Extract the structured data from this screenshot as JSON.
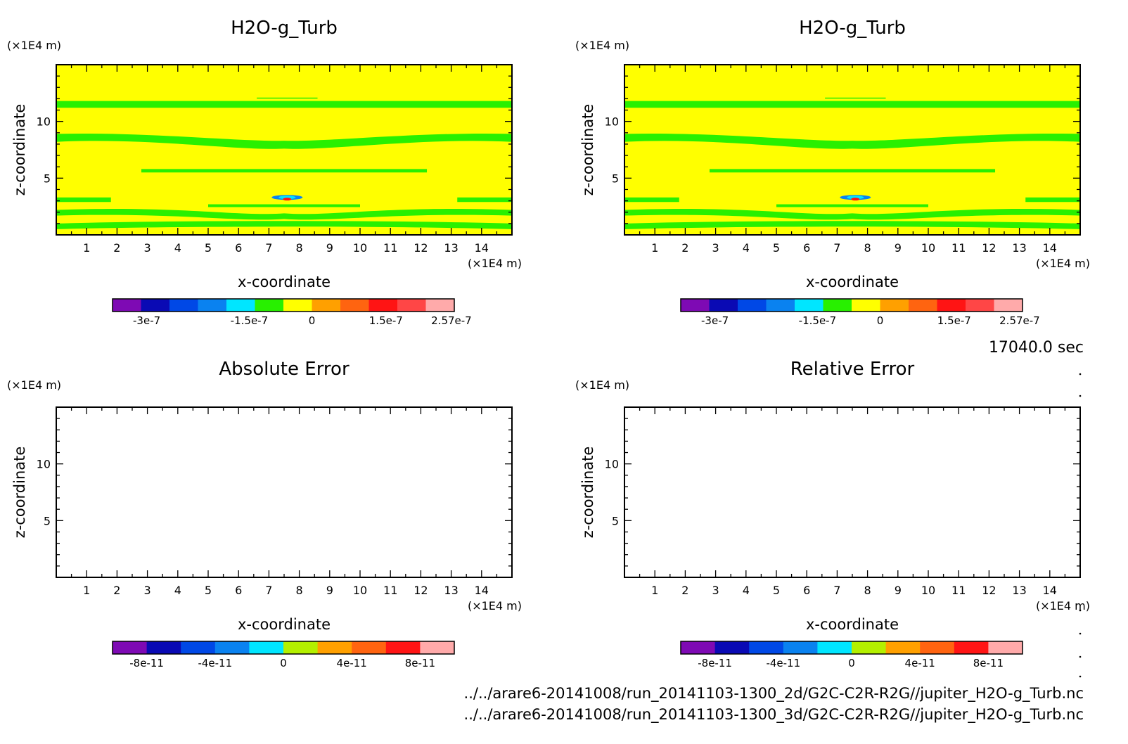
{
  "chart_data": [
    {
      "type": "heatmap",
      "title": "H2O-g_Turb",
      "xlabel": "x-coordinate",
      "ylabel": "z-coordinate",
      "x_unit": "(×1E4 m)",
      "y_unit": "(×1E4 m)",
      "xlim": [
        0,
        15
      ],
      "ylim": [
        0,
        15
      ],
      "x_ticks": [
        "1",
        "2",
        "3",
        "4",
        "5",
        "6",
        "7",
        "8",
        "9",
        "10",
        "11",
        "12",
        "13",
        "14"
      ],
      "y_ticks": [
        "5",
        "10"
      ],
      "field": "mostly 0 level (yellow) with bands of slightly negative values (green) near z=1-3, 5.8, 8-9 and 11.5; a small -3e-7 / +2.57e-7 feature near x=7.6, z=3.3",
      "colorbar": {
        "colors": [
          "#7e0ab4",
          "#0a0ab4",
          "#0048e6",
          "#0a82f0",
          "#00e6ff",
          "#28f000",
          "#ffff00",
          "#ffa000",
          "#ff6410",
          "#ff1414",
          "#ff4646",
          "#ffaaaa"
        ],
        "labels": [
          "-3e-7",
          "-1.5e-7",
          "0",
          "1.5e-7",
          "2.57e-7"
        ]
      }
    },
    {
      "type": "heatmap",
      "title": "H2O-g_Turb",
      "xlabel": "x-coordinate",
      "ylabel": "z-coordinate",
      "x_unit": "(×1E4 m)",
      "y_unit": "(×1E4 m)",
      "xlim": [
        0,
        15
      ],
      "ylim": [
        0,
        15
      ],
      "x_ticks": [
        "1",
        "2",
        "3",
        "4",
        "5",
        "6",
        "7",
        "8",
        "9",
        "10",
        "11",
        "12",
        "13",
        "14"
      ],
      "y_ticks": [
        "5",
        "10"
      ],
      "colorbar": {
        "colors": [
          "#7e0ab4",
          "#0a0ab4",
          "#0048e6",
          "#0a82f0",
          "#00e6ff",
          "#28f000",
          "#ffff00",
          "#ffa000",
          "#ff6410",
          "#ff1414",
          "#ff4646",
          "#ffaaaa"
        ],
        "labels": [
          "-3e-7",
          "-1.5e-7",
          "0",
          "1.5e-7",
          "2.57e-7"
        ]
      }
    },
    {
      "type": "heatmap",
      "title": "Absolute Error",
      "xlabel": "x-coordinate",
      "ylabel": "z-coordinate",
      "x_unit": "(×1E4 m)",
      "y_unit": "(×1E4 m)",
      "xlim": [
        0,
        15
      ],
      "ylim": [
        0,
        15
      ],
      "x_ticks": [
        "1",
        "2",
        "3",
        "4",
        "5",
        "6",
        "7",
        "8",
        "9",
        "10",
        "11",
        "12",
        "13",
        "14"
      ],
      "y_ticks": [
        "5",
        "10"
      ],
      "field": "empty (no error)",
      "colorbar": {
        "colors": [
          "#7e0ab4",
          "#0a0ab4",
          "#0048e6",
          "#0a82f0",
          "#00e6ff",
          "#b4f000",
          "#ffa000",
          "#ff6410",
          "#ff1414",
          "#ffaaaa"
        ],
        "labels": [
          "-8e-11",
          "-4e-11",
          "0",
          "4e-11",
          "8e-11"
        ]
      }
    },
    {
      "type": "heatmap",
      "title": "Relative Error",
      "xlabel": "x-coordinate",
      "ylabel": "z-coordinate",
      "x_unit": "(×1E4 m)",
      "y_unit": "(×1E4 m)",
      "xlim": [
        0,
        15
      ],
      "ylim": [
        0,
        15
      ],
      "x_ticks": [
        "1",
        "2",
        "3",
        "4",
        "5",
        "6",
        "7",
        "8",
        "9",
        "10",
        "11",
        "12",
        "13",
        "14"
      ],
      "y_ticks": [
        "5",
        "10"
      ],
      "field": "empty (no error)",
      "colorbar": {
        "colors": [
          "#7e0ab4",
          "#0a0ab4",
          "#0048e6",
          "#0a82f0",
          "#00e6ff",
          "#b4f000",
          "#ffa000",
          "#ff6410",
          "#ff1414",
          "#ffaaaa"
        ],
        "labels": [
          "-8e-11",
          "-4e-11",
          "0",
          "4e-11",
          "8e-11"
        ]
      }
    }
  ],
  "time_label": "17040.0 sec",
  "files": [
    "../../arare6-20141008/run_20141103-1300_2d/G2C-C2R-R2G//jupiter_H2O-g_Turb.nc",
    "../../arare6-20141008/run_20141103-1300_3d/G2C-C2R-R2G//jupiter_H2O-g_Turb.nc"
  ],
  "colors": {
    "zero_level": "#ffff00",
    "negative_band": "#28f000",
    "frame": "#000000"
  }
}
